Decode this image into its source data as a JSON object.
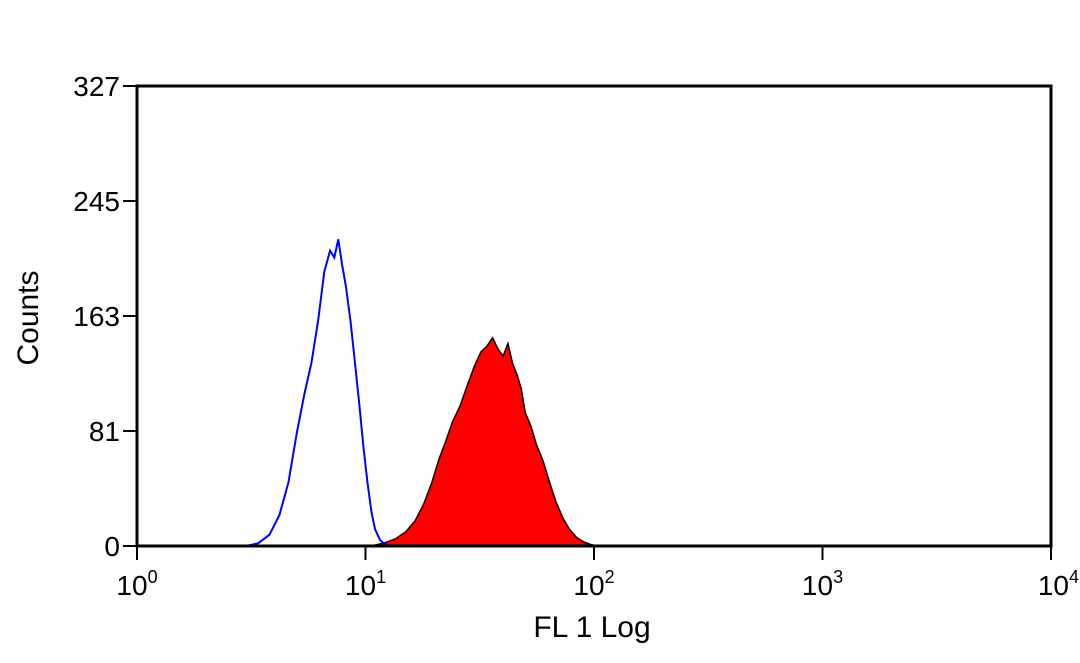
{
  "chart_data": {
    "type": "area",
    "xlabel": "FL 1 Log",
    "ylabel": "Counts",
    "x_scale": "log",
    "xlim": [
      1,
      10000
    ],
    "ylim": [
      0,
      327
    ],
    "x_ticks": [
      {
        "base": "10",
        "exp": "0",
        "value": 1
      },
      {
        "base": "10",
        "exp": "1",
        "value": 10
      },
      {
        "base": "10",
        "exp": "2",
        "value": 100
      },
      {
        "base": "10",
        "exp": "3",
        "value": 1000
      },
      {
        "base": "10",
        "exp": "4",
        "value": 10000
      }
    ],
    "y_ticks": [
      "0",
      "81",
      "163",
      "245",
      "327"
    ],
    "grid": false,
    "series": [
      {
        "style": "filled",
        "color": "#ff0000",
        "stroke": "#000000",
        "x": [
          10.5,
          12,
          13.5,
          15,
          16.5,
          18,
          19.5,
          21,
          22.5,
          24,
          26,
          28,
          30,
          32,
          34,
          36,
          38,
          40,
          42,
          44,
          46,
          48,
          50,
          53,
          56,
          60,
          64,
          68,
          73,
          78,
          84,
          90,
          97,
          105
        ],
        "values": [
          0,
          2,
          5,
          10,
          18,
          30,
          45,
          62,
          75,
          88,
          100,
          115,
          128,
          138,
          142,
          148,
          140,
          135,
          144,
          130,
          122,
          112,
          95,
          85,
          72,
          60,
          45,
          32,
          20,
          12,
          6,
          3,
          1,
          0
        ]
      },
      {
        "style": "outline",
        "color": "#0000ff",
        "x": [
          2.6,
          3.0,
          3.4,
          3.8,
          4.2,
          4.6,
          5.0,
          5.4,
          5.8,
          6.2,
          6.6,
          7.0,
          7.3,
          7.6,
          7.9,
          8.2,
          8.6,
          9.0,
          9.4,
          9.8,
          10.2,
          10.6,
          11.0,
          11.6,
          12.5
        ],
        "values": [
          0,
          0,
          2,
          8,
          22,
          45,
          80,
          108,
          130,
          160,
          195,
          210,
          205,
          218,
          200,
          185,
          160,
          130,
          100,
          70,
          45,
          25,
          12,
          4,
          0
        ]
      }
    ]
  }
}
